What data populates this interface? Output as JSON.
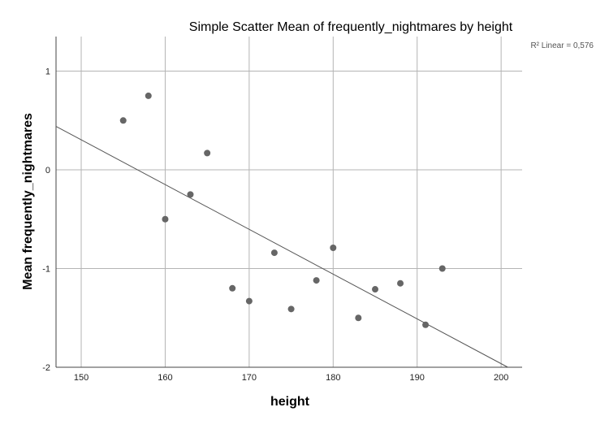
{
  "chart_data": {
    "type": "scatter",
    "title": "Simple Scatter Mean of frequently_nightmares by height",
    "xlabel": "height",
    "ylabel": "Mean frequently_nightmares",
    "xlim": [
      147,
      202.5
    ],
    "ylim": [
      -2,
      1.35
    ],
    "x_ticks": [
      150,
      160,
      170,
      180,
      190,
      200
    ],
    "y_ticks": [
      1,
      0,
      -1,
      -2
    ],
    "x_tick_labels": [
      "150",
      "160",
      "170",
      "180",
      "190",
      "200"
    ],
    "y_tick_labels": [
      "1",
      "0",
      "-1",
      "-2"
    ],
    "grid": true,
    "points": [
      {
        "x": 155,
        "y": 0.5
      },
      {
        "x": 158,
        "y": 0.75
      },
      {
        "x": 160,
        "y": -0.5
      },
      {
        "x": 163,
        "y": -0.25
      },
      {
        "x": 165,
        "y": 0.17
      },
      {
        "x": 168,
        "y": -1.2
      },
      {
        "x": 170,
        "y": -1.33
      },
      {
        "x": 173,
        "y": -0.84
      },
      {
        "x": 175,
        "y": -1.41
      },
      {
        "x": 178,
        "y": -1.12
      },
      {
        "x": 180,
        "y": -0.79
      },
      {
        "x": 183,
        "y": -1.5
      },
      {
        "x": 185,
        "y": -1.21
      },
      {
        "x": 188,
        "y": -1.15
      },
      {
        "x": 191,
        "y": -1.57
      },
      {
        "x": 193,
        "y": -1.0
      }
    ],
    "fit_line": {
      "x": [
        147,
        200.8
      ],
      "y": [
        0.44,
        -2.0
      ]
    },
    "r2_label": "R² Linear = 0,576",
    "colors": {
      "points": "#666666",
      "fit_line": "#555555",
      "grid": "#b4b4b4"
    }
  }
}
